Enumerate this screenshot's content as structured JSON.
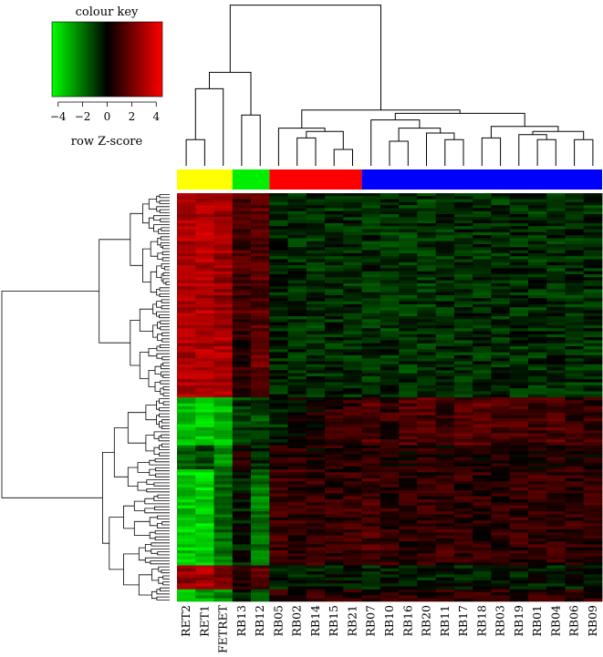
{
  "chart_data": {
    "type": "heatmap",
    "title": "",
    "key": {
      "title": "colour key",
      "label": "row Z-score",
      "ticks": [
        -4,
        -2,
        0,
        2,
        4
      ],
      "range": [
        -4.5,
        4.5
      ],
      "low_color": "#00ff00",
      "mid_color": "#000000",
      "high_color": "#ff0000"
    },
    "columns": [
      "RET2",
      "RET1",
      "FETRET",
      "RB13",
      "RB12",
      "RB05",
      "RB02",
      "RB14",
      "RB15",
      "RB21",
      "RB07",
      "RB10",
      "RB16",
      "RB20",
      "RB11",
      "RB17",
      "RB18",
      "RB03",
      "RB19",
      "RB01",
      "RB04",
      "RB06",
      "RB09"
    ],
    "groups": [
      {
        "color": "#ffff00",
        "columns": [
          "RET2",
          "RET1",
          "FETRET"
        ]
      },
      {
        "color": "#00ee00",
        "columns": [
          "RB13",
          "RB12"
        ]
      },
      {
        "color": "#ff0000",
        "columns": [
          "RB05",
          "RB02",
          "RB14",
          "RB15",
          "RB21"
        ]
      },
      {
        "color": "#0000ff",
        "columns": [
          "RB07",
          "RB10",
          "RB16",
          "RB20",
          "RB11",
          "RB17",
          "RB18",
          "RB03",
          "RB19",
          "RB01",
          "RB04",
          "RB06",
          "RB09"
        ]
      }
    ],
    "row_blocks": [
      {
        "rows": 46,
        "values": [
          2.0,
          2.1,
          1.8,
          0.8,
          1.0,
          -0.4,
          -0.5,
          -0.5,
          -0.5,
          -0.5,
          -0.5,
          -0.6,
          -0.6,
          -0.6,
          -0.5,
          -0.5,
          -0.5,
          -0.5,
          -0.5,
          -0.5,
          -0.5,
          -0.5,
          -0.5
        ]
      },
      {
        "rows": 22,
        "values": [
          2.1,
          2.0,
          2.0,
          0.5,
          1.2,
          -0.4,
          -0.5,
          -0.5,
          -0.5,
          -0.5,
          -0.5,
          -0.5,
          -0.6,
          -0.5,
          -0.5,
          -0.5,
          -0.5,
          -0.5,
          -0.5,
          -0.5,
          -0.5,
          -0.5,
          -0.5
        ]
      },
      {
        "rows": 16,
        "values": [
          -2.3,
          -2.3,
          -2.2,
          -0.6,
          -0.8,
          -0.5,
          0.0,
          0.3,
          0.5,
          0.6,
          1.0,
          0.6,
          0.9,
          0.9,
          0.7,
          1.0,
          1.1,
          0.8,
          0.8,
          0.7,
          0.9,
          0.7,
          0.6
        ]
      },
      {
        "rows": 8,
        "values": [
          -1.0,
          -0.8,
          -1.6,
          0.3,
          -0.4,
          0.4,
          0.4,
          0.3,
          0.4,
          0.4,
          0.5,
          0.4,
          0.3,
          0.5,
          0.3,
          0.4,
          0.3,
          0.3,
          0.3,
          0.3,
          0.4,
          0.3,
          0.3
        ]
      },
      {
        "rows": 32,
        "values": [
          -2.4,
          -2.5,
          -1.3,
          -0.3,
          -1.4,
          0.7,
          0.6,
          0.6,
          0.5,
          0.6,
          0.8,
          0.5,
          0.5,
          0.5,
          0.6,
          0.5,
          0.5,
          0.5,
          0.6,
          0.6,
          0.5,
          0.5,
          0.5
        ]
      },
      {
        "rows": 8,
        "values": [
          1.8,
          1.9,
          1.5,
          0.5,
          1.0,
          -0.3,
          -0.3,
          -0.3,
          -0.3,
          -0.3,
          -0.4,
          -0.3,
          -0.4,
          -0.3,
          -0.3,
          -0.3,
          -0.3,
          -0.3,
          -0.3,
          -0.3,
          -0.3,
          -0.3,
          -0.3
        ]
      },
      {
        "rows": 4,
        "values": [
          -2.2,
          -2.0,
          -1.5,
          -0.3,
          -0.8,
          0.5,
          0.5,
          0.5,
          0.5,
          0.5,
          0.6,
          0.5,
          0.5,
          0.5,
          0.5,
          0.5,
          0.5,
          0.5,
          0.5,
          0.5,
          0.5,
          0.5,
          0.5
        ]
      }
    ]
  }
}
